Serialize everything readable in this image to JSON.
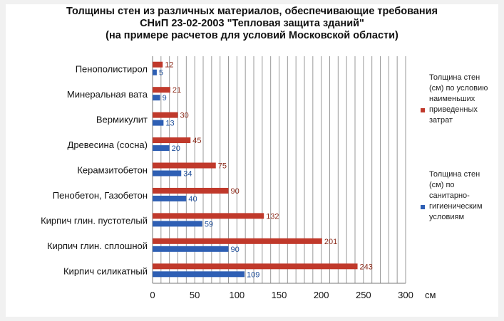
{
  "title_lines": [
    "Толщины стен из различных материалов, обеспечивающие требования",
    "СНиП 23-02-2003 \"Тепловая защита зданий\"",
    "(на примере расчетов для условий Московской области)"
  ],
  "legend": [
    {
      "label": "Толщина стен (см) по условию наименьших приведенных затрат",
      "color": "#c0392b"
    },
    {
      "label": "Толщина стен (см) по санитарно-гигиеническим условиям",
      "color": "#2e5fb4"
    }
  ],
  "chart_data": {
    "type": "bar",
    "orientation": "horizontal",
    "title": "Толщины стен из различных материалов, обеспечивающие требования СНиП 23-02-2003 \"Тепловая защита зданий\" (на примере расчетов для условий Московской области)",
    "categories": [
      "Пенополистирол",
      "Минеральная вата",
      "Вермикулит",
      "Древесина (сосна)",
      "Керамзитобетон",
      "Пенобетон, Газобетон",
      "Кирпич глин. пустотелый",
      "Кирпич глин. сплошной",
      "Кирпич силикатный"
    ],
    "series": [
      {
        "name": "Толщина стен (см) по условию наименьших приведенных затрат",
        "color": "#c0392b",
        "label_color": "#8b2a1a",
        "values": [
          12,
          21,
          30,
          45,
          75,
          90,
          132,
          201,
          243
        ]
      },
      {
        "name": "Толщина стен (см) по санитарно-гигиеническим условиям",
        "color": "#2e5fb4",
        "label_color": "#1f4f9a",
        "values": [
          5,
          9,
          13,
          20,
          34,
          40,
          59,
          90,
          109
        ]
      }
    ],
    "x_ticks": [
      "0",
      "50",
      "100",
      "150",
      "200",
      "250",
      "300"
    ],
    "xlim": [
      0,
      300
    ],
    "xunit": "см",
    "grid_step": 10,
    "grid": true
  }
}
